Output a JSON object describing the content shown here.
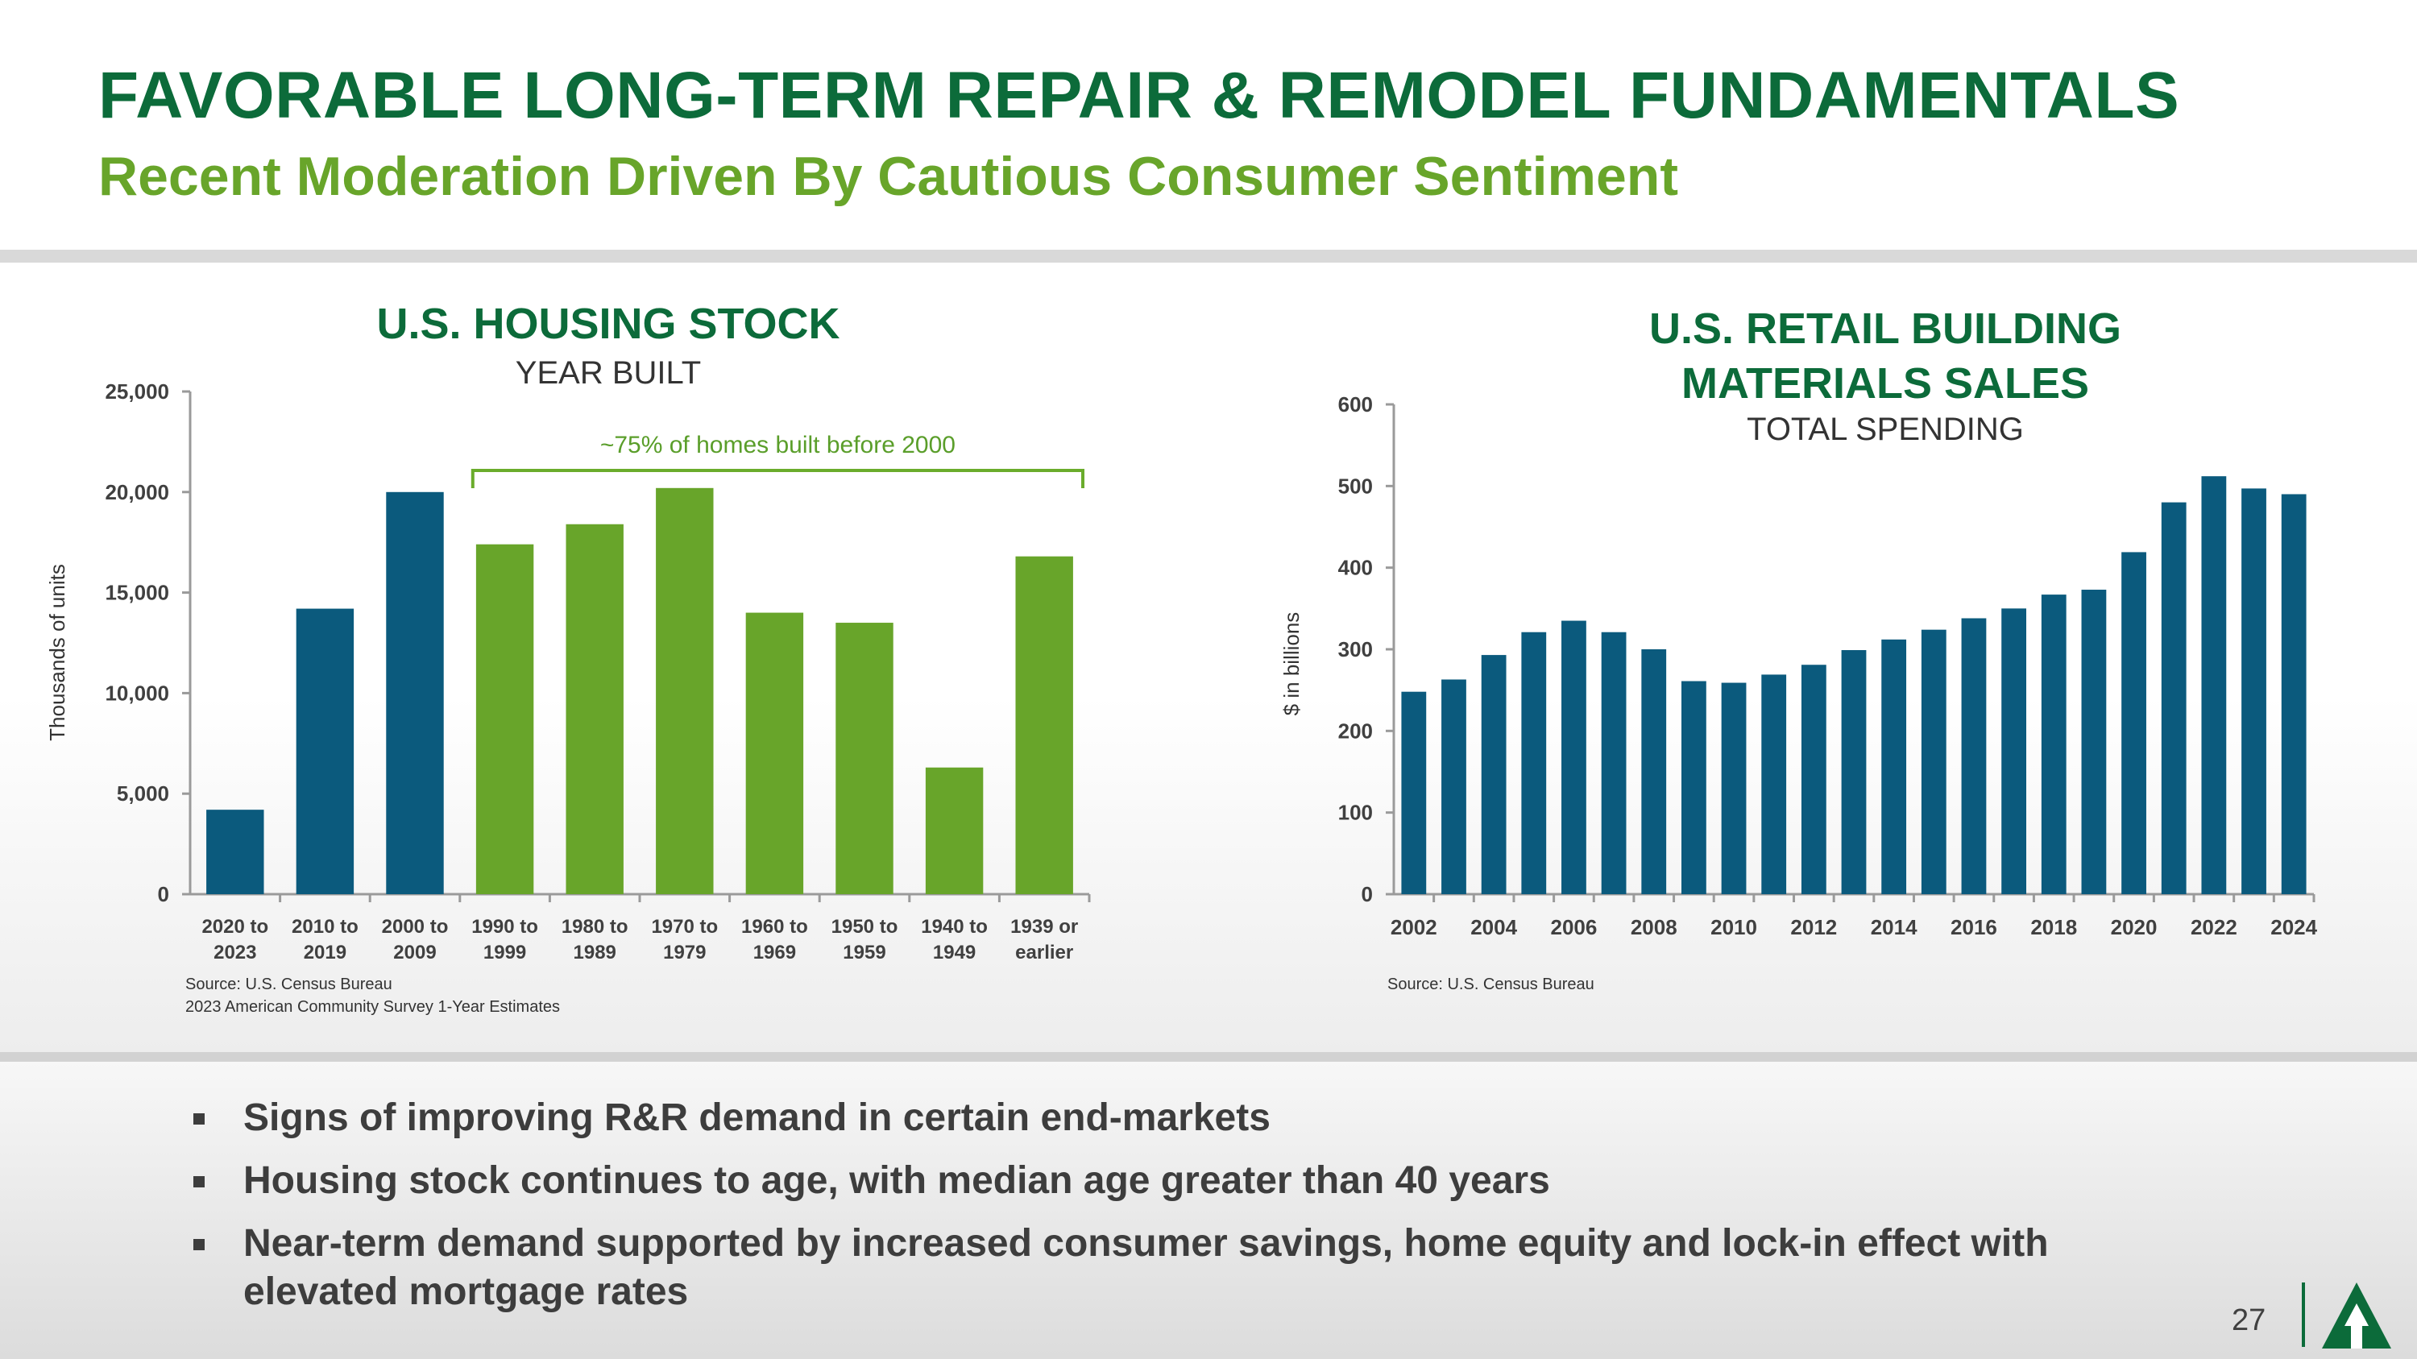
{
  "header": {
    "title": "FAVORABLE LONG-TERM REPAIR & REMODEL FUNDAMENTALS",
    "subtitle": "Recent Moderation Driven By Cautious Consumer Sentiment"
  },
  "chart_data": [
    {
      "type": "bar",
      "title": "U.S. HOUSING STOCK",
      "subtitle": "YEAR BUILT",
      "xlabel": "",
      "ylabel": "Thousands of units",
      "ylim": [
        0,
        25000
      ],
      "yticks": [
        "0",
        "5,000",
        "10,000",
        "15,000",
        "20,000",
        "25,000"
      ],
      "categories": [
        [
          "2020 to",
          "2023"
        ],
        [
          "2010 to",
          "2019"
        ],
        [
          "2000 to",
          "2009"
        ],
        [
          "1990 to",
          "1999"
        ],
        [
          "1980 to",
          "1989"
        ],
        [
          "1970 to",
          "1979"
        ],
        [
          "1960 to",
          "1969"
        ],
        [
          "1950 to",
          "1959"
        ],
        [
          "1940 to",
          "1949"
        ],
        [
          "1939 or",
          "earlier"
        ]
      ],
      "values": [
        4200,
        14200,
        20000,
        17400,
        18400,
        20200,
        14000,
        13500,
        6300,
        16800
      ],
      "colors": [
        "#0b5a7d",
        "#0b5a7d",
        "#0b5a7d",
        "#68a52a",
        "#68a52a",
        "#68a52a",
        "#68a52a",
        "#68a52a",
        "#68a52a",
        "#68a52a"
      ],
      "annotation": "~75% of homes built before 2000",
      "source": [
        "Source: U.S. Census Bureau",
        "2023 American Community Survey 1-Year Estimates"
      ],
      "grid": false
    },
    {
      "type": "bar",
      "title": [
        "U.S. RETAIL BUILDING",
        "MATERIALS SALES"
      ],
      "subtitle": "TOTAL SPENDING",
      "xlabel": "",
      "ylabel": "$ in billions",
      "ylim": [
        0,
        600
      ],
      "yticks": [
        "0",
        "100",
        "200",
        "300",
        "400",
        "500",
        "600"
      ],
      "categories": [
        "2002",
        "2003",
        "2004",
        "2005",
        "2006",
        "2007",
        "2008",
        "2009",
        "2010",
        "2011",
        "2012",
        "2013",
        "2014",
        "2015",
        "2016",
        "2017",
        "2018",
        "2019",
        "2020",
        "2021",
        "2022",
        "2023",
        "2024"
      ],
      "xtick_labels": [
        "2002",
        "2004",
        "2006",
        "2008",
        "2010",
        "2012",
        "2014",
        "2016",
        "2018",
        "2020",
        "2022",
        "2024"
      ],
      "values": [
        248,
        263,
        293,
        321,
        335,
        321,
        300,
        261,
        259,
        269,
        281,
        299,
        312,
        324,
        338,
        350,
        367,
        373,
        419,
        480,
        512,
        497,
        490
      ],
      "color": "#0b5a7d",
      "source": [
        "Source: U.S. Census Bureau"
      ],
      "grid": false
    }
  ],
  "bullets": [
    [
      "Signs of improving R&R demand in certain end-markets"
    ],
    [
      "Housing stock continues to age, with median age greater than 40 years"
    ],
    [
      "Near-term demand supported by increased consumer savings, home equity and lock-in effect with",
      "elevated mortgage rates"
    ]
  ],
  "footer": {
    "page_number": "27",
    "logo_icon": "company-logo-icon"
  }
}
